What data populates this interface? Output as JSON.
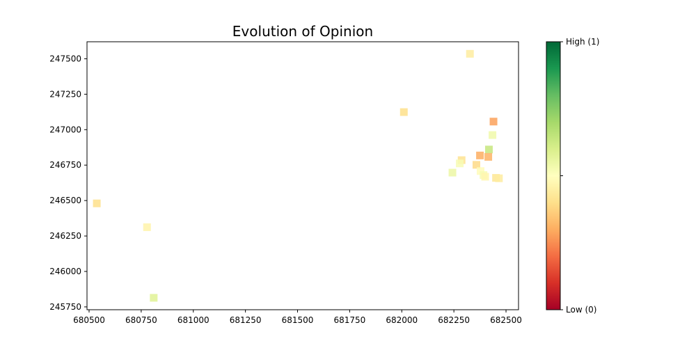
{
  "chart_data": {
    "type": "scatter",
    "title": "Evolution of Opinion",
    "xlabel": "",
    "ylabel": "",
    "xlim": [
      680490,
      682560
    ],
    "ylim": [
      245730,
      247620
    ],
    "xticks": [
      680500,
      680750,
      681000,
      681250,
      681500,
      681750,
      682000,
      682250,
      682500
    ],
    "yticks": [
      245750,
      246000,
      246250,
      246500,
      246750,
      247000,
      247250,
      247500
    ],
    "grid": false,
    "marker": "square",
    "colormap": "RdYlGn",
    "colorbar": {
      "min_label": "Low (0)",
      "max_label": "High (1)",
      "ticks": [
        0,
        0.5,
        1
      ],
      "tick_labels": [
        "Low (0)",
        "",
        "High (1)"
      ]
    },
    "points": [
      {
        "x": 680537,
        "y": 246480,
        "value": 0.4
      },
      {
        "x": 680778,
        "y": 246312,
        "value": 0.46
      },
      {
        "x": 680810,
        "y": 245814,
        "value": 0.58
      },
      {
        "x": 682010,
        "y": 247124,
        "value": 0.4
      },
      {
        "x": 682327,
        "y": 247535,
        "value": 0.44
      },
      {
        "x": 682440,
        "y": 247057,
        "value": 0.28
      },
      {
        "x": 682435,
        "y": 246962,
        "value": 0.54
      },
      {
        "x": 682418,
        "y": 246860,
        "value": 0.64
      },
      {
        "x": 682375,
        "y": 246818,
        "value": 0.3
      },
      {
        "x": 682415,
        "y": 246808,
        "value": 0.31
      },
      {
        "x": 682287,
        "y": 246785,
        "value": 0.41
      },
      {
        "x": 682278,
        "y": 246762,
        "value": 0.52
      },
      {
        "x": 682358,
        "y": 246752,
        "value": 0.39
      },
      {
        "x": 682243,
        "y": 246697,
        "value": 0.55
      },
      {
        "x": 682378,
        "y": 246708,
        "value": 0.49
      },
      {
        "x": 682392,
        "y": 246680,
        "value": 0.52
      },
      {
        "x": 682400,
        "y": 246668,
        "value": 0.47
      },
      {
        "x": 682452,
        "y": 246660,
        "value": 0.42
      },
      {
        "x": 682466,
        "y": 246657,
        "value": 0.44
      }
    ]
  }
}
